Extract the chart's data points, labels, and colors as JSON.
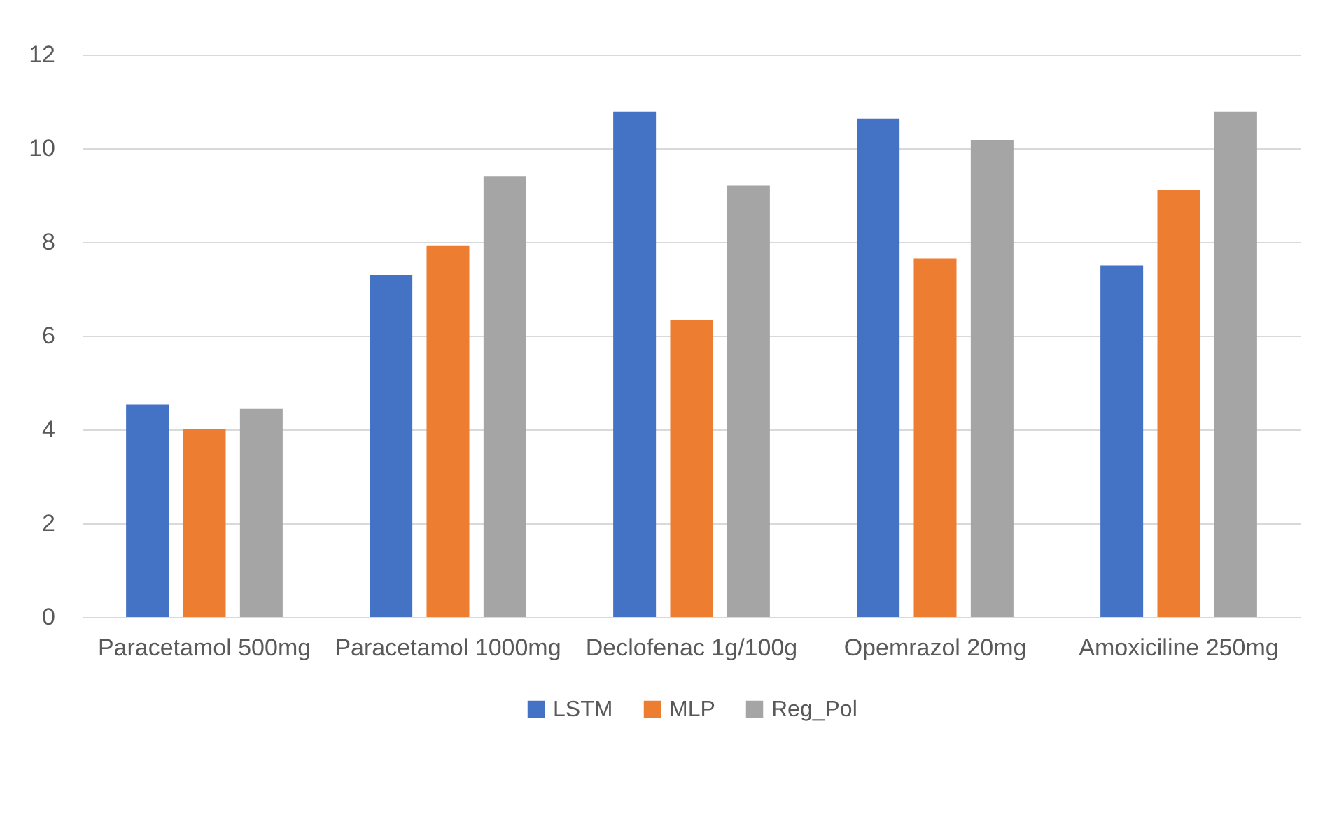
{
  "chart_data": {
    "type": "bar",
    "categories": [
      "Paracetamol 500mg",
      "Paracetamol 1000mg",
      "Declofenac 1g/100g",
      "Opemrazol 20mg",
      "Amoxiciline 250mg"
    ],
    "series": [
      {
        "name": "LSTM",
        "color": "#4472c4",
        "values": [
          4.53,
          7.3,
          10.78,
          10.63,
          7.5
        ]
      },
      {
        "name": "MLP",
        "color": "#ed7d31",
        "values": [
          4.0,
          7.93,
          6.33,
          7.65,
          9.12
        ]
      },
      {
        "name": "Reg_Pol",
        "color": "#a5a5a5",
        "values": [
          4.45,
          9.4,
          9.2,
          10.18,
          10.78
        ]
      }
    ],
    "ylim": [
      0,
      12
    ],
    "yticks": [
      0,
      2,
      4,
      6,
      8,
      10,
      12
    ],
    "grid": "y",
    "legend": "bottom"
  }
}
